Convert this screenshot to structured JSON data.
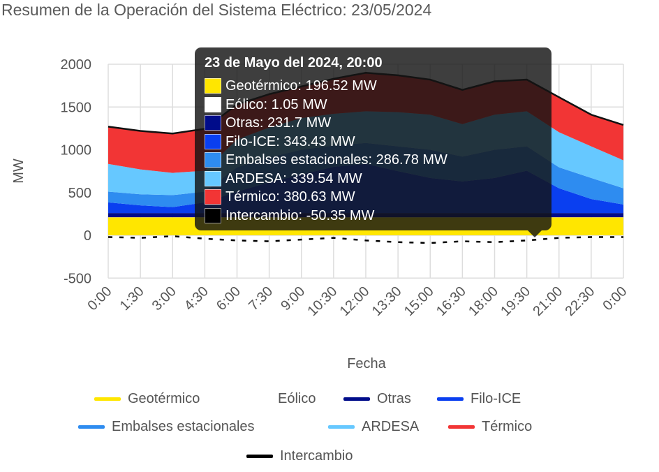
{
  "title": "Resumen de la Operación del Sistema Eléctrico: 23/05/2024",
  "chart_data": {
    "type": "area",
    "stacked": true,
    "xlabel": "Fecha",
    "ylabel": "MW",
    "ylim": [
      -500,
      2000
    ],
    "yticks": [
      "2000",
      "1500",
      "1000",
      "500",
      "0",
      "-500"
    ],
    "ytick_values": [
      2000,
      1500,
      1000,
      500,
      0,
      -500
    ],
    "x_hours": [
      0,
      1.5,
      3,
      4.5,
      6,
      7.5,
      9,
      10.5,
      12,
      13.5,
      15,
      16.5,
      18,
      19.5,
      21,
      22.5,
      24
    ],
    "xticks": [
      "0:00",
      "1:30",
      "3:00",
      "4:30",
      "6:00",
      "7:30",
      "9:00",
      "10:30",
      "12:00",
      "13:30",
      "15:00",
      "16:30",
      "18:00",
      "19:30",
      "21:00",
      "22:30",
      "0:00"
    ],
    "grid": true,
    "legend_position": "bottom",
    "series": [
      {
        "name": "Geotérmico",
        "color": "#FFE600",
        "values": [
          210,
          210,
          210,
          210,
          210,
          210,
          210,
          210,
          210,
          210,
          210,
          210,
          210,
          210,
          210,
          210,
          210
        ]
      },
      {
        "name": "Eólico",
        "color": "#FFFFFF",
        "values": [
          1,
          1,
          1,
          1,
          1,
          1,
          1,
          1,
          1,
          1,
          1,
          1,
          1,
          1,
          1,
          1,
          1
        ]
      },
      {
        "name": "Otras",
        "color": "#000C8A",
        "values": [
          49,
          49,
          49,
          49,
          49,
          49,
          49,
          49,
          49,
          49,
          49,
          49,
          49,
          49,
          49,
          49,
          49
        ]
      },
      {
        "name": "Filo-ICE",
        "color": "#0A3FF0",
        "values": [
          125,
          90,
          70,
          125,
          250,
          360,
          450,
          540,
          575,
          490,
          410,
          370,
          410,
          495,
          290,
          165,
          100
        ]
      },
      {
        "name": "Embalses estacionales",
        "color": "#2E8CF0",
        "values": [
          125,
          130,
          140,
          125,
          285,
          290,
          290,
          250,
          245,
          290,
          330,
          290,
          330,
          285,
          245,
          245,
          190
        ]
      },
      {
        "name": "ARDESA",
        "color": "#66C8FF",
        "values": [
          325,
          290,
          260,
          245,
          325,
          350,
          370,
          370,
          370,
          400,
          410,
          380,
          410,
          410,
          410,
          370,
          327
        ]
      },
      {
        "name": "Térmico",
        "color": "#F23535",
        "values": [
          435,
          450,
          460,
          490,
          410,
          390,
          370,
          410,
          450,
          430,
          410,
          400,
          390,
          370,
          410,
          370,
          413
        ]
      },
      {
        "name": "Intercambio",
        "color": "#000000",
        "type": "line",
        "values": [
          -20,
          -30,
          -10,
          -40,
          -60,
          -70,
          -50,
          -30,
          -60,
          -80,
          -90,
          -70,
          -80,
          -60,
          -30,
          -20,
          -20
        ]
      }
    ],
    "tooltip": {
      "title": "23 de Mayo del 2024, 20:00",
      "items": [
        {
          "label": "Geotérmico: 196.52 MW",
          "color": "#FFE600"
        },
        {
          "label": "Eólico: 1.05 MW",
          "color": "#FFFFFF"
        },
        {
          "label": "Otras: 231.7 MW",
          "color": "#000C8A"
        },
        {
          "label": "Filo-ICE: 343.43 MW",
          "color": "#0A3FF0"
        },
        {
          "label": "Embalses estacionales: 286.78 MW",
          "color": "#2E8CF0"
        },
        {
          "label": "ARDESA: 339.54 MW",
          "color": "#66C8FF"
        },
        {
          "label": "Térmico: 380.63 MW",
          "color": "#F23535"
        },
        {
          "label": "Intercambio: -50.35 MW",
          "color": "#000000"
        }
      ]
    }
  }
}
